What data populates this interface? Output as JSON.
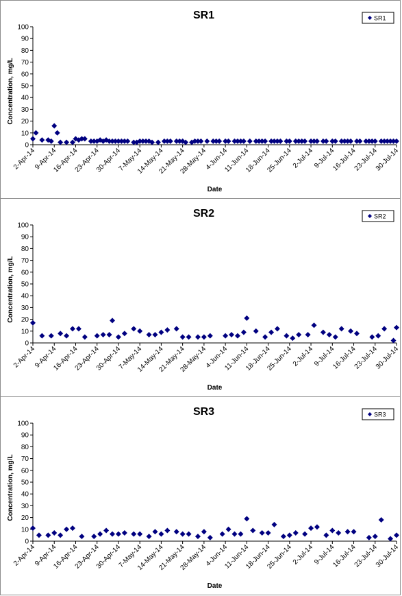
{
  "chart_data": [
    {
      "type": "scatter",
      "title": "SR1",
      "xlabel": "Date",
      "ylabel": "Concentration, mg/L",
      "ylim": [
        0,
        100
      ],
      "yticks": [
        0,
        10,
        20,
        30,
        40,
        50,
        60,
        70,
        80,
        90,
        100
      ],
      "xlim": [
        "2014-04-02",
        "2014-07-30"
      ],
      "xtick_labels": [
        "2-Apr-14",
        "9-Apr-14",
        "16-Apr-14",
        "23-Apr-14",
        "30-Apr-14",
        "7-May-14",
        "14-May-14",
        "21-May-14",
        "28-May-14",
        "4-Jun-14",
        "11-Jun-14",
        "18-Jun-14",
        "25-Jun-14",
        "2-Jul-14",
        "9-Jul-14",
        "16-Jul-14",
        "23-Jul-14",
        "30-Jul-14"
      ],
      "grid": false,
      "legend": "top-right",
      "marker_color": "#000080",
      "series": [
        {
          "name": "SR1",
          "x": [
            "2014-04-02",
            "2014-04-03",
            "2014-04-05",
            "2014-04-07",
            "2014-04-08",
            "2014-04-09",
            "2014-04-10",
            "2014-04-11",
            "2014-04-13",
            "2014-04-15",
            "2014-04-16",
            "2014-04-17",
            "2014-04-18",
            "2014-04-19",
            "2014-04-21",
            "2014-04-22",
            "2014-04-23",
            "2014-04-24",
            "2014-04-25",
            "2014-04-26",
            "2014-04-27",
            "2014-04-28",
            "2014-04-29",
            "2014-04-30",
            "2014-05-01",
            "2014-05-02",
            "2014-05-03",
            "2014-05-05",
            "2014-05-06",
            "2014-05-07",
            "2014-05-08",
            "2014-05-09",
            "2014-05-10",
            "2014-05-11",
            "2014-05-13",
            "2014-05-15",
            "2014-05-16",
            "2014-05-17",
            "2014-05-19",
            "2014-05-20",
            "2014-05-21",
            "2014-05-22",
            "2014-05-24",
            "2014-05-25",
            "2014-05-26",
            "2014-05-27",
            "2014-05-29",
            "2014-05-31",
            "2014-06-01",
            "2014-06-02",
            "2014-06-04",
            "2014-06-05",
            "2014-06-07",
            "2014-06-08",
            "2014-06-09",
            "2014-06-10",
            "2014-06-12",
            "2014-06-14",
            "2014-06-15",
            "2014-06-16",
            "2014-06-17",
            "2014-06-19",
            "2014-06-20",
            "2014-06-21",
            "2014-06-22",
            "2014-06-24",
            "2014-06-25",
            "2014-06-27",
            "2014-06-28",
            "2014-06-29",
            "2014-06-30",
            "2014-07-02",
            "2014-07-03",
            "2014-07-04",
            "2014-07-06",
            "2014-07-07",
            "2014-07-09",
            "2014-07-10",
            "2014-07-12",
            "2014-07-13",
            "2014-07-14",
            "2014-07-15",
            "2014-07-17",
            "2014-07-18",
            "2014-07-20",
            "2014-07-21",
            "2014-07-22",
            "2014-07-23",
            "2014-07-25",
            "2014-07-26",
            "2014-07-27",
            "2014-07-28",
            "2014-07-29",
            "2014-07-30"
          ],
          "y": [
            5,
            10,
            4,
            4,
            3,
            16,
            10,
            2,
            2,
            2,
            5,
            4,
            5,
            5,
            3,
            3,
            3,
            4,
            3,
            4,
            3,
            3,
            3,
            3,
            3,
            3,
            3,
            2,
            2,
            3,
            3,
            3,
            3,
            2,
            2,
            3,
            3,
            3,
            3,
            3,
            3,
            2,
            2,
            3,
            3,
            3,
            3,
            3,
            3,
            3,
            3,
            3,
            3,
            3,
            3,
            3,
            3,
            3,
            3,
            3,
            3,
            3,
            3,
            3,
            3,
            3,
            3,
            3,
            3,
            3,
            3,
            3,
            3,
            3,
            3,
            3,
            3,
            3,
            3,
            3,
            3,
            3,
            3,
            3,
            3,
            3,
            3,
            3,
            3,
            3,
            3,
            3,
            3,
            3
          ]
        }
      ]
    },
    {
      "type": "scatter",
      "title": "SR2",
      "xlabel": "Date",
      "ylabel": "Concentration, mg/L",
      "ylim": [
        0,
        100
      ],
      "yticks": [
        0,
        10,
        20,
        30,
        40,
        50,
        60,
        70,
        80,
        90,
        100
      ],
      "xlim": [
        "2014-04-02",
        "2014-07-30"
      ],
      "xtick_labels": [
        "2-Apr-14",
        "9-Apr-14",
        "16-Apr-14",
        "23-Apr-14",
        "30-Apr-14",
        "7-May-14",
        "14-May-14",
        "21-May-14",
        "28-May-14",
        "4-Jun-14",
        "11-Jun-14",
        "18-Jun-14",
        "25-Jun-14",
        "2-Jul-14",
        "9-Jul-14",
        "16-Jul-14",
        "23-Jul-14",
        "30-Jul-14"
      ],
      "grid": false,
      "legend": "top-right",
      "marker_color": "#000080",
      "series": [
        {
          "name": "SR2",
          "x": [
            "2014-04-02",
            "2014-04-05",
            "2014-04-08",
            "2014-04-11",
            "2014-04-13",
            "2014-04-15",
            "2014-04-17",
            "2014-04-19",
            "2014-04-23",
            "2014-04-25",
            "2014-04-27",
            "2014-04-28",
            "2014-04-30",
            "2014-05-02",
            "2014-05-05",
            "2014-05-07",
            "2014-05-10",
            "2014-05-12",
            "2014-05-14",
            "2014-05-16",
            "2014-05-19",
            "2014-05-21",
            "2014-05-23",
            "2014-05-26",
            "2014-05-28",
            "2014-05-30",
            "2014-06-04",
            "2014-06-06",
            "2014-06-08",
            "2014-06-10",
            "2014-06-11",
            "2014-06-14",
            "2014-06-17",
            "2014-06-19",
            "2014-06-21",
            "2014-06-24",
            "2014-06-26",
            "2014-06-28",
            "2014-07-01",
            "2014-07-03",
            "2014-07-06",
            "2014-07-08",
            "2014-07-10",
            "2014-07-12",
            "2014-07-15",
            "2014-07-17",
            "2014-07-22",
            "2014-07-24",
            "2014-07-26",
            "2014-07-29",
            "2014-07-30"
          ],
          "y": [
            17,
            6,
            6,
            8,
            6,
            12,
            12,
            5,
            6,
            7,
            7,
            19,
            5,
            8,
            12,
            10,
            7,
            7,
            9,
            11,
            12,
            5,
            5,
            5,
            5,
            6,
            6,
            7,
            6,
            9,
            21,
            10,
            5,
            9,
            12,
            6,
            4,
            7,
            7,
            15,
            9,
            7,
            5,
            12,
            10,
            8,
            5,
            6,
            12,
            2,
            13
          ]
        }
      ]
    },
    {
      "type": "scatter",
      "title": "SR3",
      "xlabel": "Date",
      "ylabel": "Concentration, mg/L",
      "ylim": [
        0,
        100
      ],
      "yticks": [
        0,
        10,
        20,
        30,
        40,
        50,
        60,
        70,
        80,
        90,
        100
      ],
      "xlim": [
        "2014-04-02",
        "2014-07-30"
      ],
      "xtick_labels": [
        "2-Apr-14",
        "9-Apr-14",
        "16-Apr-14",
        "23-Apr-14",
        "30-Apr-14",
        "7-May-14",
        "14-May-14",
        "21-May-14",
        "28-May-14",
        "4-Jun-14",
        "11-Jun-14",
        "18-Jun-14",
        "25-Jun-14",
        "2-Jul-14",
        "9-Jul-14",
        "16-Jul-14",
        "23-Jul-14",
        "30-Jul-14"
      ],
      "grid": false,
      "legend": "top-right",
      "marker_color": "#000080",
      "series": [
        {
          "name": "SR3",
          "x": [
            "2014-04-02",
            "2014-04-04",
            "2014-04-07",
            "2014-04-09",
            "2014-04-11",
            "2014-04-13",
            "2014-04-15",
            "2014-04-18",
            "2014-04-22",
            "2014-04-24",
            "2014-04-26",
            "2014-04-28",
            "2014-04-30",
            "2014-05-02",
            "2014-05-05",
            "2014-05-07",
            "2014-05-10",
            "2014-05-12",
            "2014-05-14",
            "2014-05-16",
            "2014-05-19",
            "2014-05-21",
            "2014-05-23",
            "2014-05-26",
            "2014-05-28",
            "2014-05-30",
            "2014-06-03",
            "2014-06-05",
            "2014-06-07",
            "2014-06-09",
            "2014-06-11",
            "2014-06-13",
            "2014-06-16",
            "2014-06-18",
            "2014-06-20",
            "2014-06-23",
            "2014-06-25",
            "2014-06-27",
            "2014-06-30",
            "2014-07-02",
            "2014-07-04",
            "2014-07-07",
            "2014-07-09",
            "2014-07-11",
            "2014-07-14",
            "2014-07-16",
            "2014-07-21",
            "2014-07-23",
            "2014-07-25",
            "2014-07-28",
            "2014-07-30"
          ],
          "y": [
            11,
            5,
            5,
            7,
            5,
            10,
            11,
            4,
            4,
            6,
            9,
            6,
            6,
            7,
            6,
            6,
            4,
            8,
            6,
            9,
            8,
            6,
            6,
            4,
            8,
            3,
            6,
            10,
            6,
            6,
            19,
            9,
            7,
            7,
            14,
            4,
            5,
            7,
            6,
            11,
            12,
            5,
            9,
            7,
            8,
            8,
            3,
            4,
            18,
            2,
            5
          ]
        }
      ]
    }
  ]
}
